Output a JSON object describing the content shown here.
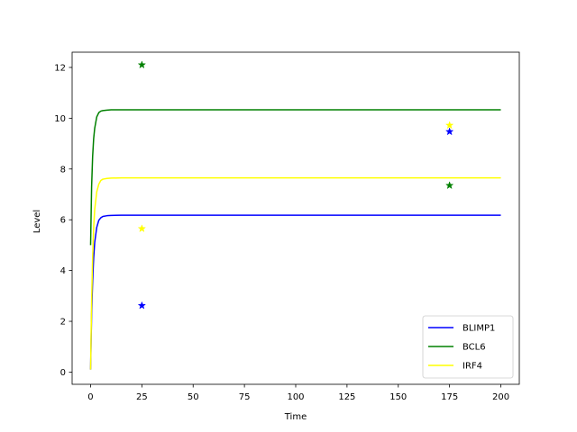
{
  "chart_data": {
    "type": "line",
    "title": "",
    "xlabel": "Time",
    "ylabel": "Level",
    "xlim": [
      -9,
      209
    ],
    "ylim": [
      -0.48,
      12.6
    ],
    "xticks": [
      0,
      25,
      50,
      75,
      100,
      125,
      150,
      175,
      200
    ],
    "yticks": [
      0,
      2,
      4,
      6,
      8,
      10,
      12
    ],
    "grid": false,
    "legend_position": "lower-right",
    "series": [
      {
        "name": "BLIMP1",
        "color": "#0000ff",
        "x": [
          0,
          0.5,
          1,
          1.5,
          2,
          3,
          4,
          5,
          6,
          8,
          10,
          15,
          25,
          50,
          100,
          150,
          200
        ],
        "y": [
          0.1,
          2.3,
          3.6,
          4.5,
          5.1,
          5.7,
          5.98,
          6.08,
          6.13,
          6.16,
          6.17,
          6.18,
          6.18,
          6.18,
          6.18,
          6.18,
          6.18
        ]
      },
      {
        "name": "BCL6",
        "color": "#008000",
        "x": [
          0,
          0.5,
          1,
          1.5,
          2,
          3,
          4,
          5,
          6,
          8,
          10,
          15,
          25,
          50,
          100,
          150,
          200
        ],
        "y": [
          5.0,
          7.3,
          8.5,
          9.2,
          9.6,
          10.05,
          10.22,
          10.28,
          10.3,
          10.32,
          10.33,
          10.33,
          10.33,
          10.33,
          10.33,
          10.33,
          10.33
        ]
      },
      {
        "name": "IRF4",
        "color": "#ffff00",
        "x": [
          0,
          0.5,
          1,
          1.5,
          2,
          3,
          4,
          5,
          6,
          8,
          10,
          15,
          25,
          50,
          100,
          150,
          200
        ],
        "y": [
          0.1,
          2.8,
          4.5,
          5.7,
          6.4,
          7.1,
          7.4,
          7.55,
          7.6,
          7.63,
          7.64,
          7.65,
          7.65,
          7.65,
          7.65,
          7.65,
          7.65
        ]
      }
    ],
    "markers": [
      {
        "series": "BLIMP1",
        "color": "#0000ff",
        "points": [
          [
            25,
            2.62
          ],
          [
            175,
            9.47
          ]
        ]
      },
      {
        "series": "BCL6",
        "color": "#008000",
        "points": [
          [
            25,
            12.1
          ],
          [
            175,
            7.35
          ]
        ]
      },
      {
        "series": "IRF4",
        "color": "#ffff00",
        "points": [
          [
            25,
            5.65
          ],
          [
            175,
            9.72
          ]
        ]
      }
    ]
  }
}
